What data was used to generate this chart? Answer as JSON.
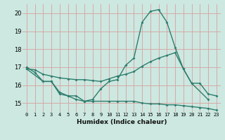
{
  "xlabel": "Humidex (Indice chaleur)",
  "series": {
    "s1": {
      "x": [
        0,
        1,
        2,
        3,
        4,
        5,
        6,
        7,
        8,
        9,
        10,
        11,
        12,
        13,
        14,
        15,
        16,
        17,
        18,
        19,
        20,
        22
      ],
      "y": [
        17.0,
        16.7,
        16.2,
        16.2,
        15.6,
        15.4,
        15.4,
        15.1,
        15.2,
        15.8,
        16.2,
        16.3,
        17.1,
        17.5,
        19.5,
        20.1,
        20.2,
        19.5,
        18.1,
        16.9,
        16.1,
        15.2
      ]
    },
    "s2": {
      "x": [
        0,
        1,
        2,
        3,
        4,
        5,
        6,
        7,
        8,
        9,
        10,
        11,
        12,
        13,
        14,
        15,
        16,
        17,
        18,
        19,
        20,
        21,
        22,
        23
      ],
      "y": [
        16.9,
        16.85,
        16.6,
        16.5,
        16.4,
        16.35,
        16.3,
        16.3,
        16.25,
        16.2,
        16.35,
        16.5,
        16.6,
        16.75,
        17.05,
        17.3,
        17.5,
        17.65,
        17.8,
        16.9,
        16.1,
        16.1,
        15.5,
        15.4
      ]
    },
    "s3": {
      "x": [
        0,
        2,
        3,
        4,
        5,
        6,
        7,
        8,
        10,
        11,
        12,
        13,
        14,
        15,
        16,
        17,
        18,
        19,
        20,
        21,
        22,
        23
      ],
      "y": [
        16.9,
        16.2,
        16.2,
        15.5,
        15.4,
        15.2,
        15.1,
        15.1,
        15.1,
        15.1,
        15.1,
        15.1,
        15.0,
        14.95,
        14.95,
        14.9,
        14.9,
        14.85,
        14.8,
        14.75,
        14.7,
        14.6
      ]
    }
  },
  "color": "#2e7d6e",
  "bg_color": "#cce8e0",
  "grid_color_major": "#d8a0a0",
  "grid_color_minor": "#e8c8c8",
  "ylim": [
    14.5,
    20.5
  ],
  "xlim": [
    -0.5,
    23.5
  ],
  "yticks": [
    15,
    16,
    17,
    18,
    19,
    20
  ],
  "xticks": [
    0,
    1,
    2,
    3,
    4,
    5,
    6,
    7,
    8,
    9,
    10,
    11,
    12,
    13,
    14,
    15,
    16,
    17,
    18,
    19,
    20,
    21,
    22,
    23
  ]
}
